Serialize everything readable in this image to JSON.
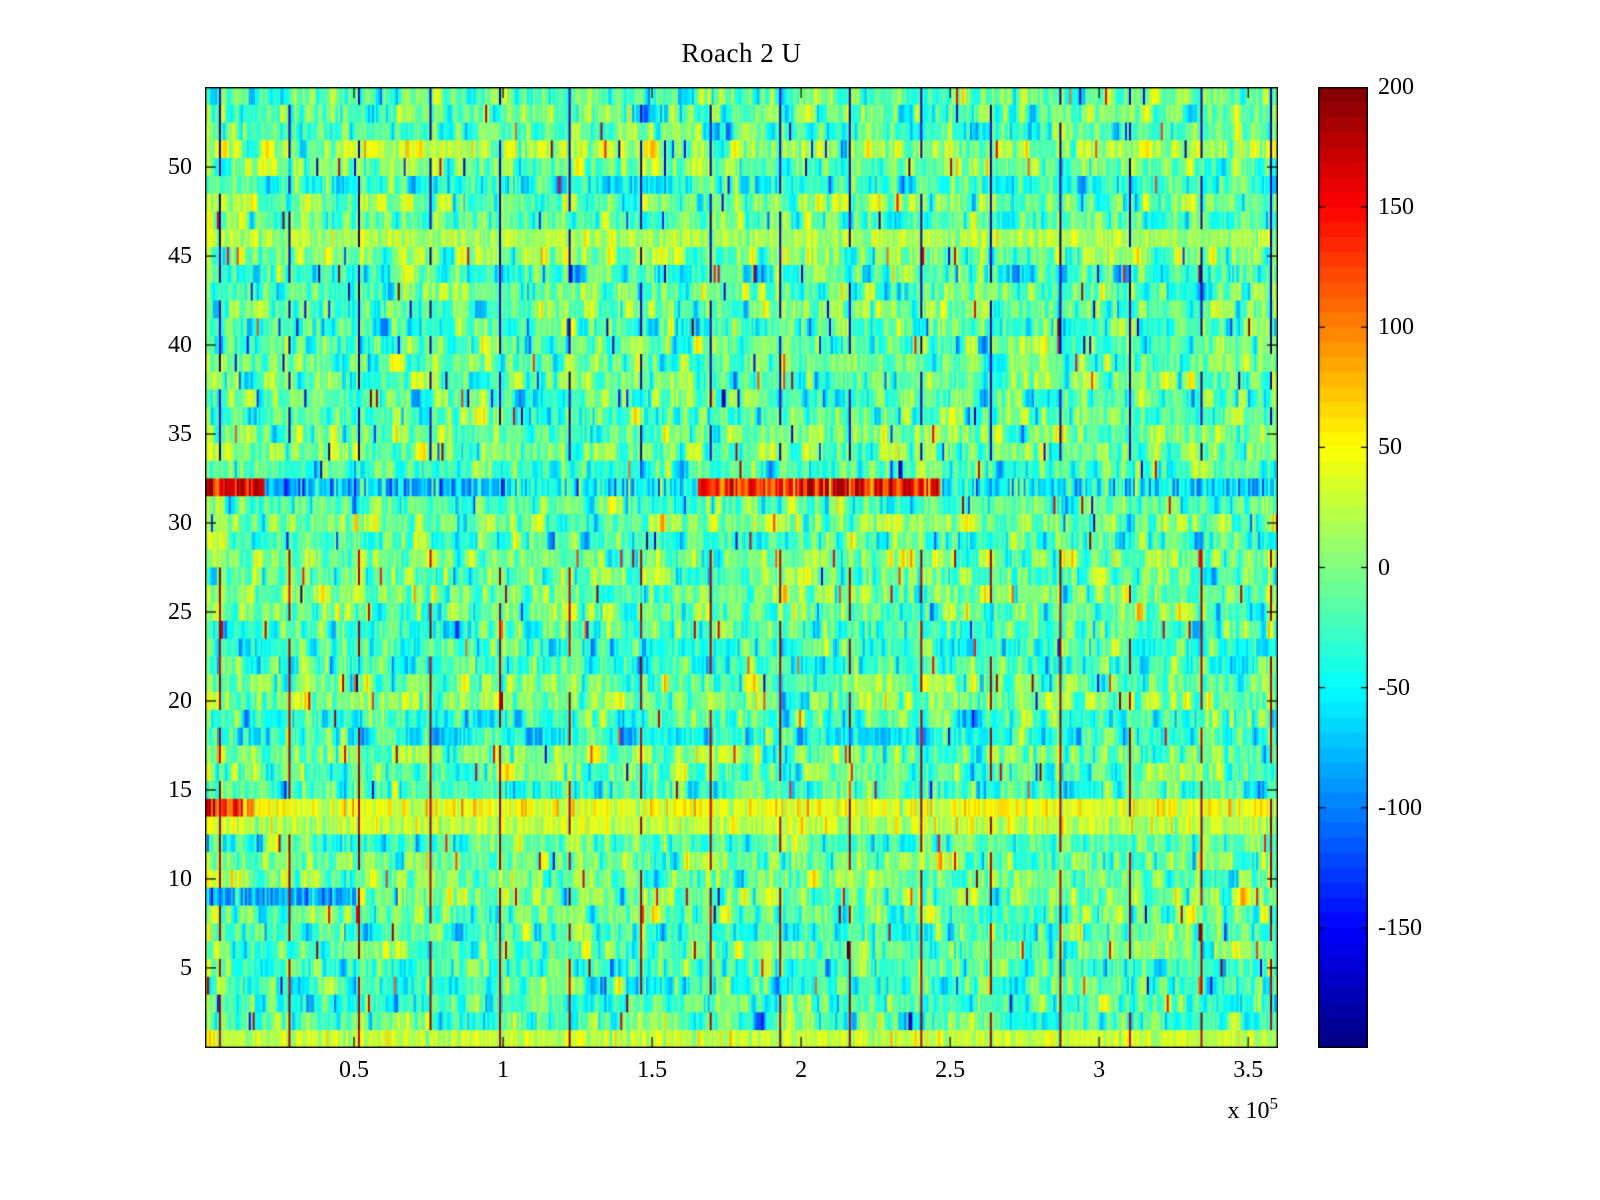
{
  "title": "Roach 2 U",
  "chart_data": {
    "type": "heatmap",
    "title": "Roach 2 U",
    "xlabel": "",
    "ylabel": "",
    "x_range": [
      0,
      360000
    ],
    "y_range": [
      0.5,
      54.5
    ],
    "x_ticks": [
      50000,
      100000,
      150000,
      200000,
      250000,
      300000,
      350000
    ],
    "x_tick_labels": [
      "0.5",
      "1",
      "1.5",
      "2",
      "2.5",
      "3",
      "3.5"
    ],
    "x_multiplier_label": "x 10",
    "x_multiplier_exp": "5",
    "y_ticks": [
      5,
      10,
      15,
      20,
      25,
      30,
      35,
      40,
      45,
      50
    ],
    "rows": 54,
    "cols": 540,
    "grid": false,
    "legend": "colorbar-right",
    "colorbar": {
      "min": -200,
      "max": 200,
      "ticks": [
        200,
        150,
        100,
        50,
        0,
        -50,
        -100,
        -150
      ],
      "n_segments": 64,
      "colormap": "jet"
    },
    "noise": {
      "seed": 1337,
      "mean": -14,
      "std": 30,
      "row_offset_std": 10,
      "ar": 0.55,
      "speck_prob": 0.012,
      "speck_min": 110,
      "speck_max": 200,
      "speck_pos_bias_lower": 0.7,
      "speck_pos_bias_upper": 0.35,
      "left_edge_boost": 22
    },
    "features": {
      "vertical_stripes": {
        "x_positions": [
          5000,
          28500,
          52000,
          75500,
          99000,
          122500,
          146000,
          169500,
          193000,
          216500,
          240000,
          263500,
          287000,
          310500,
          334000,
          357500
        ],
        "upper": {
          "row_min": 34,
          "row_max": 54,
          "value": -185,
          "presence": 0.78
        },
        "lower": {
          "row_min": 1,
          "row_max": 28,
          "value": 185,
          "presence": 0.78
        }
      },
      "row_anomalies": [
        {
          "row": 32,
          "segments": [
            {
              "x0": 0.0,
              "x1": 0.055,
              "value": 165,
              "jitter": 30
            },
            {
              "x0": 0.055,
              "x1": 0.28,
              "value": -75,
              "jitter": 35
            },
            {
              "x0": 0.28,
              "x1": 0.46,
              "value": -45,
              "jitter": 35
            },
            {
              "x0": 0.46,
              "x1": 0.685,
              "value": 140,
              "jitter": 40
            },
            {
              "x0": 0.685,
              "x1": 1.0,
              "value": -55,
              "jitter": 35
            }
          ]
        },
        {
          "row": 14,
          "segments": [
            {
              "x0": 0.0,
              "x1": 0.045,
              "value": 130,
              "jitter": 30
            },
            {
              "x0": 0.045,
              "x1": 1.0,
              "value": 42,
              "jitter": 22
            }
          ]
        },
        {
          "row": 13,
          "segments": [
            {
              "x0": 0.0,
              "x1": 1.0,
              "value": 25,
              "jitter": 20
            }
          ]
        },
        {
          "row": 9,
          "segments": [
            {
              "x0": 0.0,
              "x1": 0.14,
              "value": -85,
              "jitter": 25
            }
          ]
        },
        {
          "row": 1,
          "segments": [
            {
              "x0": 0.0,
              "x1": 1.0,
              "value": 26,
              "jitter": 18
            }
          ]
        },
        {
          "row": 46,
          "segments": [
            {
              "x0": 0.0,
              "x1": 1.0,
              "value": 16,
              "jitter": 18
            }
          ]
        }
      ]
    }
  }
}
